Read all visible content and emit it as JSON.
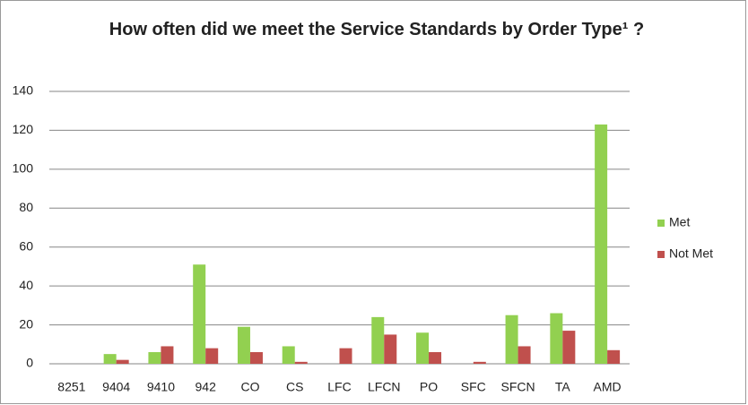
{
  "chart_data": {
    "type": "bar",
    "title": "How often did we meet the Service Standards by Order Type¹ ?",
    "categories": [
      "8251",
      "9404",
      "9410",
      "942",
      "CO",
      "CS",
      "LFC",
      "LFCN",
      "PO",
      "SFC",
      "SFCN",
      "TA",
      "AMD"
    ],
    "series": [
      {
        "name": "Met",
        "color": "#92d050",
        "values": [
          0,
          5,
          6,
          51,
          19,
          9,
          0,
          24,
          16,
          0,
          25,
          26,
          123
        ]
      },
      {
        "name": "Not Met",
        "color": "#c0504d",
        "values": [
          0,
          2,
          9,
          8,
          6,
          1,
          8,
          15,
          6,
          1,
          9,
          17,
          7
        ]
      }
    ],
    "ylim": [
      0,
      140
    ],
    "yticks": [
      0,
      20,
      40,
      60,
      80,
      100,
      120,
      140
    ],
    "grid": true,
    "legend": "right"
  }
}
